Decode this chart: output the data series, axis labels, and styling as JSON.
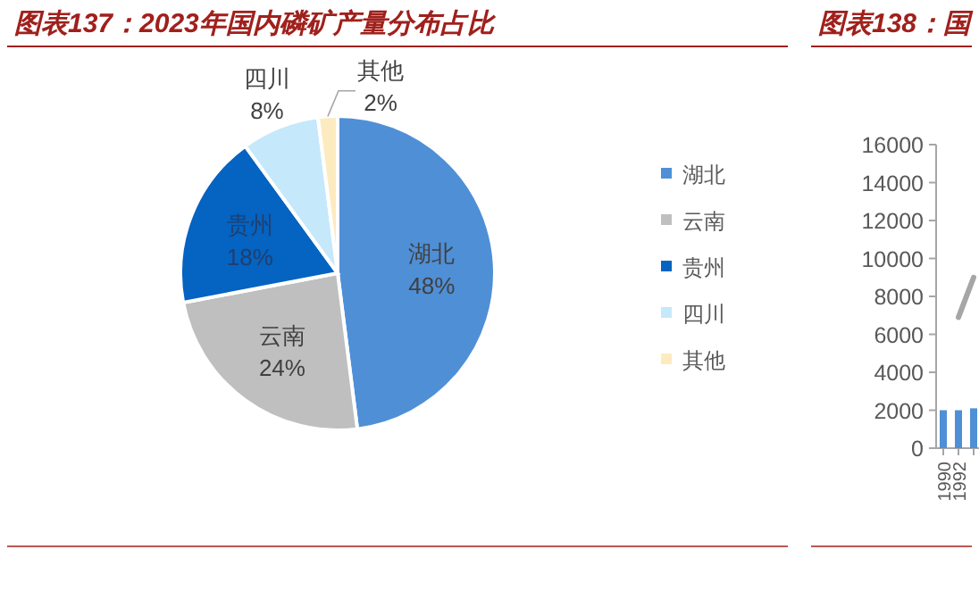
{
  "chart_data": [
    {
      "type": "pie",
      "title": "图表137：2023年国内磷矿产量分布占比",
      "categories": [
        "湖北",
        "云南",
        "贵州",
        "四川",
        "其他"
      ],
      "values": [
        48,
        24,
        18,
        8,
        2
      ],
      "colors": [
        "#4f8fd6",
        "#bfbfbf",
        "#0563c1",
        "#c5e8fb",
        "#fdebc0"
      ],
      "value_labels": [
        "48%",
        "24%",
        "18%",
        "8%",
        "2%"
      ],
      "legend": "right"
    },
    {
      "type": "bar",
      "title": "图表138：国",
      "categories": [
        "1990",
        "1992",
        null
      ],
      "series": [
        {
          "type": "bar",
          "color": "#4f8fd6",
          "values": [
            2000,
            2000,
            2100
          ]
        },
        {
          "type": "line",
          "color": "#a6a6a6",
          "values": [
            null,
            6900,
            9000
          ]
        }
      ],
      "ylim": [
        0,
        16000
      ],
      "yticks": [
        0,
        2000,
        4000,
        6000,
        8000,
        10000,
        12000,
        14000,
        16000
      ],
      "grid": false,
      "legend": false
    }
  ]
}
